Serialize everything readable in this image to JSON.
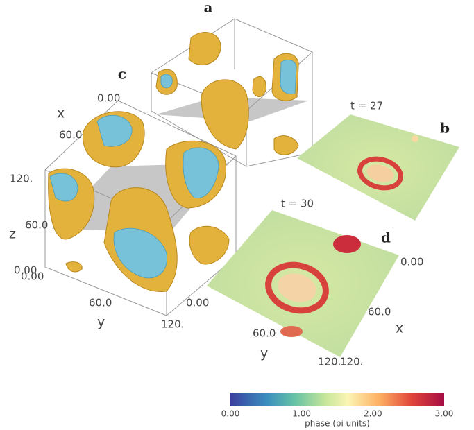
{
  "panels": {
    "a": "a",
    "b": "b",
    "c": "c",
    "d": "d"
  },
  "times": {
    "b": "t = 27",
    "d": "t = 30"
  },
  "panel_c": {
    "x_label": "x",
    "x_ticks": [
      "0.00",
      "60.0",
      "120."
    ],
    "z_label": "z",
    "z_ticks": [
      "60.0",
      "0.00"
    ],
    "y_label": "y",
    "y_ticks": [
      "0.00",
      "60.0",
      "120."
    ]
  },
  "panel_d": {
    "y_label": "y",
    "y_ticks": [
      "0.00",
      "60.0",
      "120."
    ],
    "x_label": "x",
    "x_ticks": [
      "0.00",
      "60.0",
      "120."
    ]
  },
  "colorbar": {
    "title": "phase (pi units)",
    "ticks": [
      "0.00",
      "1.00",
      "2.00",
      "3.00"
    ]
  }
}
